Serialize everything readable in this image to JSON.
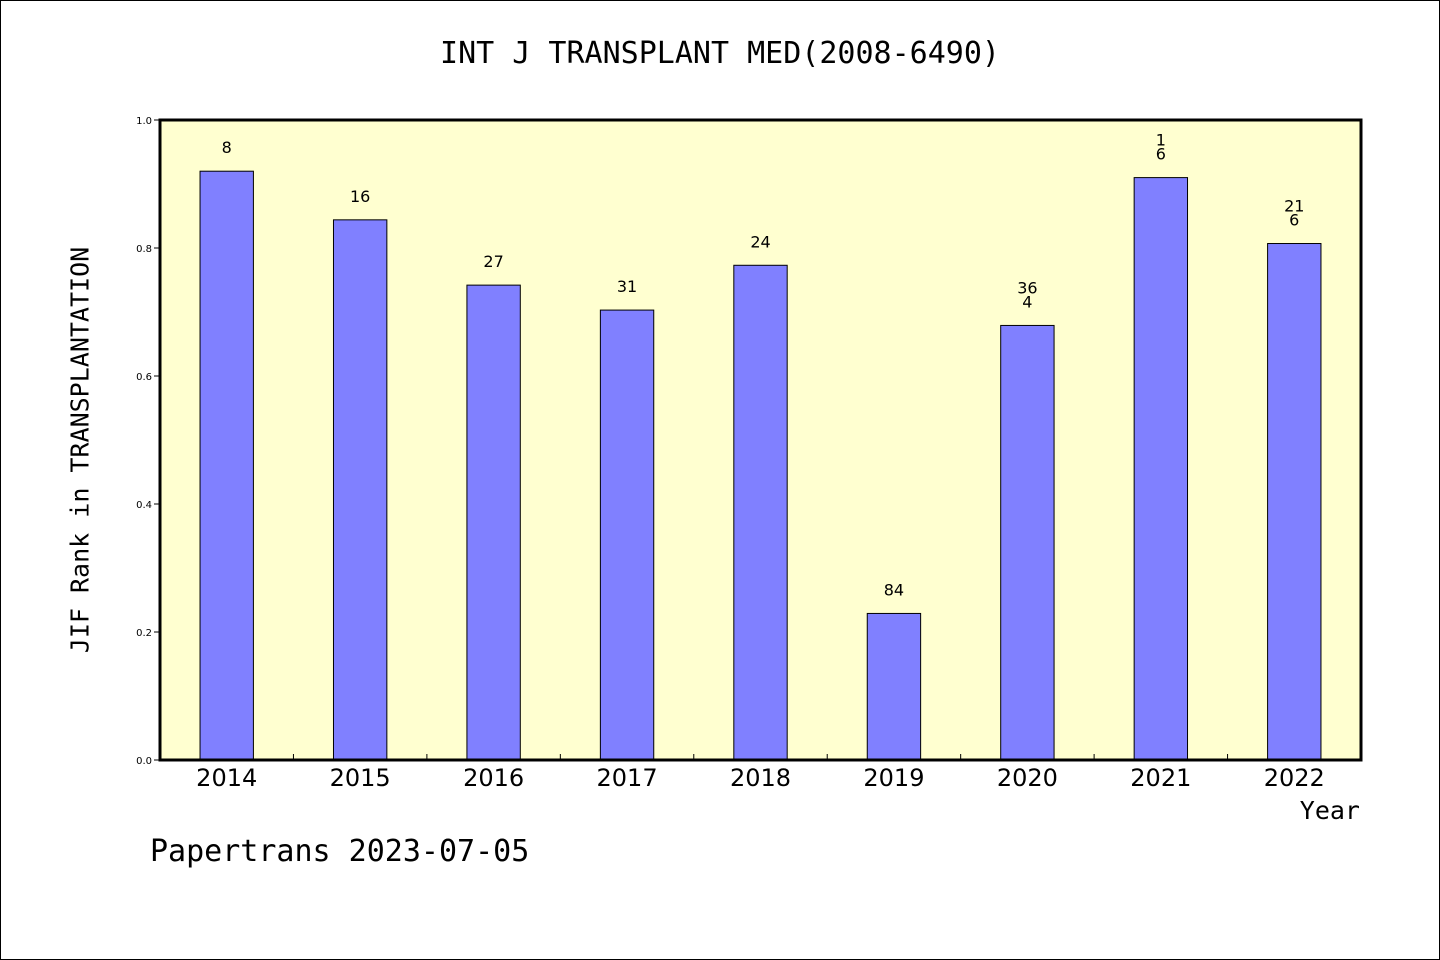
{
  "chart_data": {
    "type": "bar",
    "title": "INT J TRANSPLANT MED(2008-6490)",
    "xlabel": "Year",
    "ylabel": "JIF Rank in TRANSPLANTATION",
    "categories": [
      "2014",
      "2015",
      "2016",
      "2017",
      "2018",
      "2019",
      "2020",
      "2021",
      "2022"
    ],
    "values": [
      0.92,
      0.844,
      0.742,
      0.703,
      0.773,
      0.229,
      0.679,
      0.91,
      0.807
    ],
    "data_labels": [
      [
        "8"
      ],
      [
        "16"
      ],
      [
        "27"
      ],
      [
        "31"
      ],
      [
        "24"
      ],
      [
        "84"
      ],
      [
        "36",
        "4"
      ],
      [
        "1",
        "6"
      ],
      [
        "21",
        "6"
      ]
    ],
    "ylim": [
      0,
      1.0
    ],
    "yticks": [
      "0.0",
      "0.2",
      "0.4",
      "0.6",
      "0.8",
      "1.0"
    ],
    "grid": false,
    "colors": {
      "bar": "#8080ff",
      "plot_background": "#ffffd0",
      "axis": "#000000"
    }
  },
  "footer": "Papertrans 2023-07-05"
}
